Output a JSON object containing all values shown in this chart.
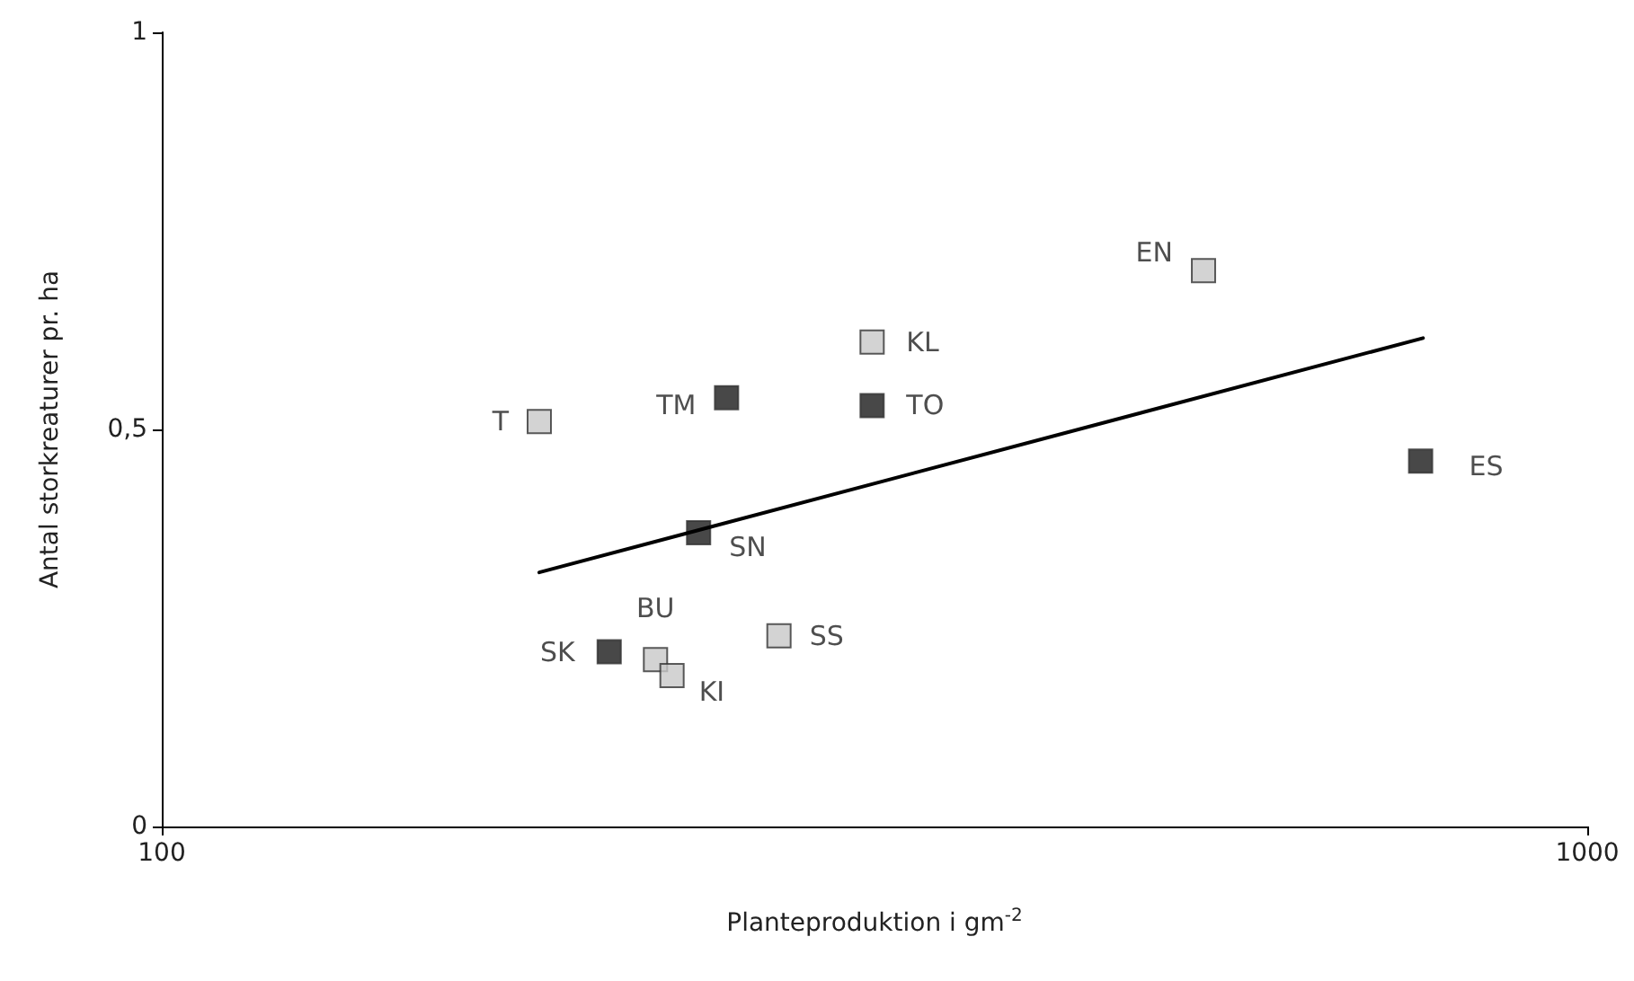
{
  "chart_data": {
    "type": "scatter",
    "xlabel": "Planteproduktion i gm$^{-2}$",
    "ylabel": "Antal storkreaturer pr. ha",
    "log": "x",
    "xlim": [
      100,
      1000
    ],
    "xticks": [
      100,
      1000
    ],
    "ylim": [
      0,
      1
    ],
    "yticks": [
      0,
      {
        "value": 0.5,
        "label": "0,5"
      },
      1
    ],
    "grid": false,
    "marker": "square",
    "series": [
      {
        "color": "#c8c8c8",
        "x": [
          184,
          315,
          538,
          222,
          228,
          271
        ],
        "values": [
          0.51,
          0.61,
          0.7,
          0.21,
          0.19,
          0.24
        ],
        "value_labels": [
          "T",
          "KL",
          "EN",
          "BU",
          "KI",
          "SS"
        ]
      },
      {
        "color": "#1a1a1a",
        "x": [
          249,
          315,
          764,
          238,
          206
        ],
        "values": [
          0.54,
          0.53,
          0.46,
          0.37,
          0.22
        ],
        "value_labels": [
          "TM",
          "TO",
          "ES",
          "SN",
          "SK"
        ]
      },
      {
        "type": "line",
        "color": "#000000",
        "marker": "none",
        "line_style": "solid",
        "x": [
          184,
          767
        ],
        "values": [
          0.32,
          0.615
        ]
      }
    ]
  }
}
